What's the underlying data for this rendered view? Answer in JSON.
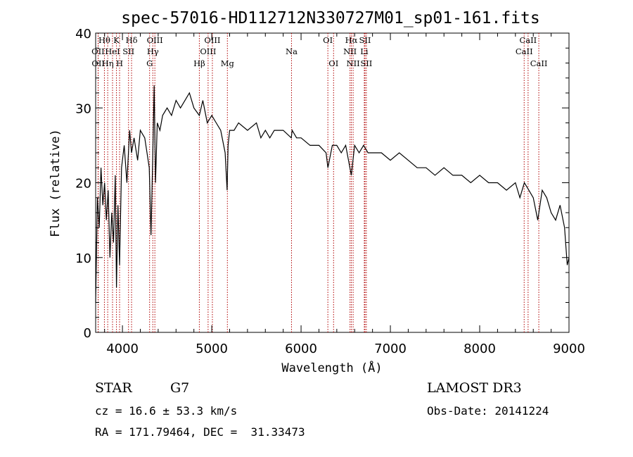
{
  "chart_data": {
    "type": "line",
    "title": "spec-57016-HD112712N330727M01_sp01-161.fits",
    "xlabel": "Wavelength (Å)",
    "ylabel": "Flux (relative)",
    "xlim": [
      3700,
      9000
    ],
    "ylim": [
      0,
      40
    ],
    "xticks": [
      4000,
      5000,
      6000,
      7000,
      8000,
      9000
    ],
    "yticks": [
      0,
      10,
      20,
      30,
      40
    ],
    "series": [
      {
        "name": "spectrum",
        "x": [
          3700,
          3720,
          3740,
          3760,
          3780,
          3800,
          3820,
          3840,
          3860,
          3880,
          3900,
          3920,
          3933,
          3950,
          3968,
          3990,
          4020,
          4050,
          4080,
          4102,
          4130,
          4170,
          4200,
          4250,
          4300,
          4320,
          4340,
          4355,
          4370,
          4390,
          4420,
          4450,
          4500,
          4550,
          4600,
          4650,
          4700,
          4750,
          4800,
          4861,
          4900,
          4950,
          5000,
          5050,
          5100,
          5150,
          5172,
          5183,
          5200,
          5250,
          5300,
          5400,
          5500,
          5550,
          5600,
          5650,
          5700,
          5800,
          5890,
          5900,
          5950,
          6000,
          6100,
          6200,
          6280,
          6300,
          6350,
          6400,
          6450,
          6500,
          6563,
          6600,
          6650,
          6700,
          6750,
          6800,
          6900,
          7000,
          7100,
          7200,
          7300,
          7400,
          7500,
          7600,
          7700,
          7800,
          7900,
          8000,
          8100,
          8200,
          8300,
          8400,
          8450,
          8500,
          8550,
          8600,
          8650,
          8700,
          8750,
          8800,
          8850,
          8900,
          8950,
          8980,
          9000
        ],
        "y": [
          4,
          18,
          14,
          22,
          17,
          20,
          15,
          19,
          10,
          16,
          12,
          21,
          6,
          17,
          9,
          22,
          25,
          20,
          27,
          24,
          26,
          23,
          27,
          26,
          22,
          13,
          24,
          33,
          20,
          28,
          27,
          29,
          30,
          29,
          31,
          30,
          31,
          32,
          30,
          29,
          31,
          28,
          29,
          28,
          27,
          24,
          19,
          25,
          27,
          27,
          28,
          27,
          28,
          26,
          27,
          26,
          27,
          27,
          26,
          27,
          26,
          26,
          25,
          25,
          24,
          22,
          25,
          25,
          24,
          25,
          21,
          25,
          24,
          25,
          24,
          24,
          24,
          23,
          24,
          23,
          22,
          22,
          21,
          22,
          21,
          21,
          20,
          21,
          20,
          20,
          19,
          20,
          18,
          20,
          19,
          18,
          15,
          19,
          18,
          16,
          15,
          17,
          14,
          9,
          10
        ]
      }
    ],
    "spectral_lines": [
      {
        "label": "Hθ",
        "x": 3798,
        "row": 1
      },
      {
        "label": "OII",
        "x": 3727,
        "row": 2
      },
      {
        "label": "OII",
        "x": 3729,
        "row": 3
      },
      {
        "label": "K",
        "x": 3933,
        "row": 1
      },
      {
        "label": "HeI",
        "x": 3889,
        "row": 2
      },
      {
        "label": "Hη",
        "x": 3835,
        "row": 3
      },
      {
        "label": "Hδ",
        "x": 4102,
        "row": 1
      },
      {
        "label": "SII",
        "x": 4068,
        "row": 2
      },
      {
        "label": "H",
        "x": 3968,
        "row": 3
      },
      {
        "label": "OIII",
        "x": 4363,
        "row": 1
      },
      {
        "label": "Hγ",
        "x": 4340,
        "row": 2
      },
      {
        "label": "G",
        "x": 4304,
        "row": 3
      },
      {
        "label": "OIII",
        "x": 5007,
        "row": 1
      },
      {
        "label": "OIII",
        "x": 4959,
        "row": 2
      },
      {
        "label": "Hβ",
        "x": 4861,
        "row": 3
      },
      {
        "label": "Mg",
        "x": 5175,
        "row": 3
      },
      {
        "label": "Na",
        "x": 5893,
        "row": 2
      },
      {
        "label": "OI",
        "x": 6300,
        "row": 1
      },
      {
        "label": "OI",
        "x": 6364,
        "row": 3
      },
      {
        "label": "Hα",
        "x": 6563,
        "row": 1
      },
      {
        "label": "SII",
        "x": 6716,
        "row": 1
      },
      {
        "label": "NII",
        "x": 6548,
        "row": 2
      },
      {
        "label": "Li",
        "x": 6708,
        "row": 2
      },
      {
        "label": "NII",
        "x": 6583,
        "row": 3
      },
      {
        "label": "SII",
        "x": 6731,
        "row": 3
      },
      {
        "label": "CaII",
        "x": 8542,
        "row": 1
      },
      {
        "label": "CaII",
        "x": 8498,
        "row": 2
      },
      {
        "label": "CaII",
        "x": 8662,
        "row": 3
      }
    ]
  },
  "info": {
    "class_label": "STAR",
    "subclass": "G7",
    "survey": "LAMOST DR3",
    "redshift_text": "cz = 16.6 ± 53.3 km/s",
    "obs_date_text": "Obs-Date: 20141224",
    "coords_text": "RA = 171.79464, DEC =  31.33473"
  }
}
